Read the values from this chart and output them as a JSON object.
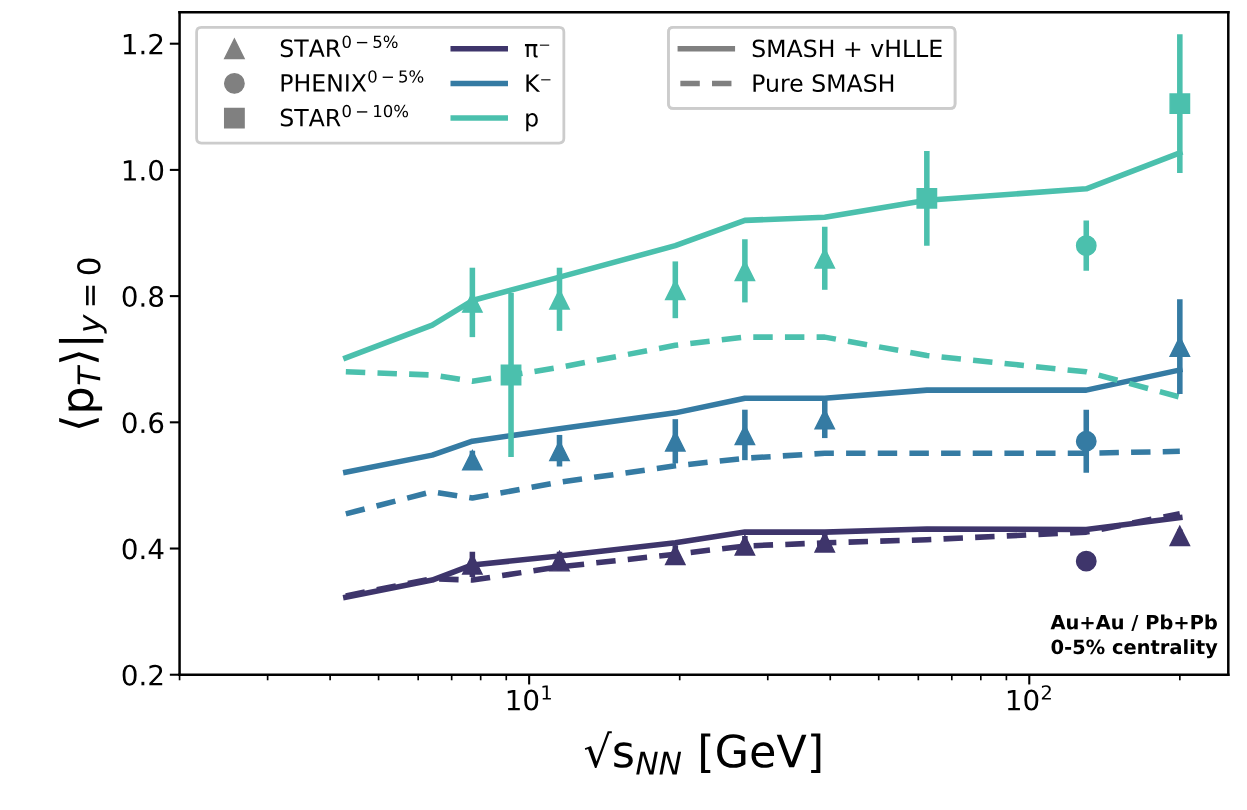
{
  "chart_data": {
    "type": "line",
    "xlabel": "√s$_{NN}$ [GeV]",
    "ylabel": "⟨p$_{T}$⟩|$_{y=0}$",
    "log": "x",
    "xlim": [
      2,
      250
    ],
    "xticks": [
      {
        "value": 10,
        "label": "10$^{1}$"
      },
      {
        "value": 100,
        "label": "10$^{2}$"
      }
    ],
    "ylim": [
      0.2,
      1.25
    ],
    "yticks": [
      0.2,
      0.4,
      0.6,
      0.8,
      {
        "value": 1.0,
        "label": "1.0"
      },
      1.2
    ],
    "legend": "top left",
    "annotations": [
      "Au+Au / Pb+Pb\n0-5% centrality"
    ],
    "series": [
      {
        "type": "scatter",
        "marker": "triangle",
        "name": "STAR$^{0−5%}$",
        "color": "#808080"
      },
      {
        "type": "scatter",
        "marker": "circle",
        "name": "PHENIX$^{0−5%}$",
        "color": "#808080"
      },
      {
        "type": "scatter",
        "marker": "square",
        "name": "STAR$^{0−10%}$",
        "color": "#808080"
      },
      {
        "type": "line",
        "line_style": "solid",
        "name": "π⁻",
        "color": "#3e356b",
        "x": [
          4.3,
          6.4,
          7.7,
          11.5,
          19.6,
          27,
          39,
          62.4,
          130,
          200
        ],
        "values": [
          0.323,
          0.35,
          0.374,
          0.388,
          0.409,
          0.426,
          0.426,
          0.431,
          0.43,
          0.449
        ]
      },
      {
        "type": "line",
        "line_style": "solid",
        "name": "K⁻",
        "color": "#357ba3",
        "x": [
          4.3,
          6.4,
          7.7,
          11.5,
          19.6,
          27,
          39,
          62.4,
          130,
          200
        ],
        "values": [
          0.521,
          0.548,
          0.57,
          0.59,
          0.615,
          0.638,
          0.638,
          0.651,
          0.651,
          0.683
        ]
      },
      {
        "type": "line",
        "line_style": "solid",
        "name": "p",
        "color": "#4bc0ad",
        "x": [
          4.3,
          6.4,
          7.7,
          11.5,
          19.6,
          27,
          39,
          62.4,
          130,
          200
        ],
        "values": [
          0.702,
          0.754,
          0.793,
          0.83,
          0.88,
          0.92,
          0.925,
          0.952,
          0.97,
          1.027
        ]
      },
      {
        "type": "line",
        "line_style": "solid",
        "name": "SMASH + vHLLE",
        "color": "#808080"
      },
      {
        "type": "line",
        "line_style": "dashed",
        "name": "Pure SMASH",
        "color": "#808080"
      },
      {
        "type": "line",
        "line_style": "dashed",
        "color": "#3e356b",
        "x": [
          4.3,
          6.4,
          7.7,
          11.5,
          19.6,
          27,
          39,
          62.4,
          130,
          200
        ],
        "values": [
          0.325,
          0.352,
          0.35,
          0.371,
          0.391,
          0.404,
          0.409,
          0.414,
          0.426,
          0.455
        ]
      },
      {
        "type": "line",
        "line_style": "dashed",
        "color": "#357ba3",
        "x": [
          4.3,
          6.4,
          7.7,
          11.5,
          19.6,
          27,
          39,
          62.4,
          130,
          200
        ],
        "values": [
          0.455,
          0.49,
          0.48,
          0.505,
          0.531,
          0.543,
          0.551,
          0.551,
          0.551,
          0.554
        ]
      },
      {
        "type": "line",
        "line_style": "dashed",
        "color": "#4bc0ad",
        "x": [
          4.3,
          6.4,
          7.7,
          11.5,
          19.6,
          27,
          39,
          62.4,
          130,
          200
        ],
        "values": [
          0.68,
          0.675,
          0.665,
          0.687,
          0.722,
          0.735,
          0.735,
          0.706,
          0.68,
          0.64
        ]
      },
      {
        "type": "scatter",
        "marker": "triangle",
        "color": "#3e356b",
        "x": [
          7.7,
          11.5,
          19.6,
          27,
          39,
          200
        ],
        "values": [
          0.375,
          0.38,
          0.39,
          0.405,
          0.41,
          0.42
        ],
        "errors": [
          0.02,
          0.015,
          0.015,
          0.015,
          0.015,
          0.01
        ]
      },
      {
        "type": "scatter",
        "marker": "triangle",
        "color": "#357ba3",
        "x": [
          7.7,
          11.5,
          19.6,
          27,
          39,
          200
        ],
        "values": [
          0.54,
          0.555,
          0.57,
          0.58,
          0.605,
          0.72
        ],
        "errors": [
          0.015,
          0.025,
          0.035,
          0.04,
          0.03,
          0.075
        ]
      },
      {
        "type": "scatter",
        "marker": "triangle",
        "color": "#4bc0ad",
        "x": [
          7.7,
          11.5,
          19.6,
          27,
          39
        ],
        "values": [
          0.79,
          0.795,
          0.81,
          0.84,
          0.86
        ],
        "errors": [
          0.055,
          0.05,
          0.045,
          0.05,
          0.05
        ]
      },
      {
        "type": "scatter",
        "marker": "circle",
        "color": "#3e356b",
        "x": [
          130
        ],
        "values": [
          0.38
        ],
        "errors": [
          null
        ]
      },
      {
        "type": "scatter",
        "marker": "circle",
        "color": "#357ba3",
        "x": [
          130
        ],
        "values": [
          0.57
        ],
        "errors": [
          0.05
        ]
      },
      {
        "type": "scatter",
        "marker": "circle",
        "color": "#4bc0ad",
        "x": [
          130
        ],
        "values": [
          0.88
        ],
        "errors": [
          0.04
        ]
      },
      {
        "type": "scatter",
        "marker": "square",
        "color": "#4bc0ad",
        "x": [
          9.2,
          62.4,
          200
        ],
        "values": [
          0.675,
          0.955,
          1.105
        ],
        "errors": [
          0.13,
          0.075,
          0.11
        ]
      }
    ]
  }
}
